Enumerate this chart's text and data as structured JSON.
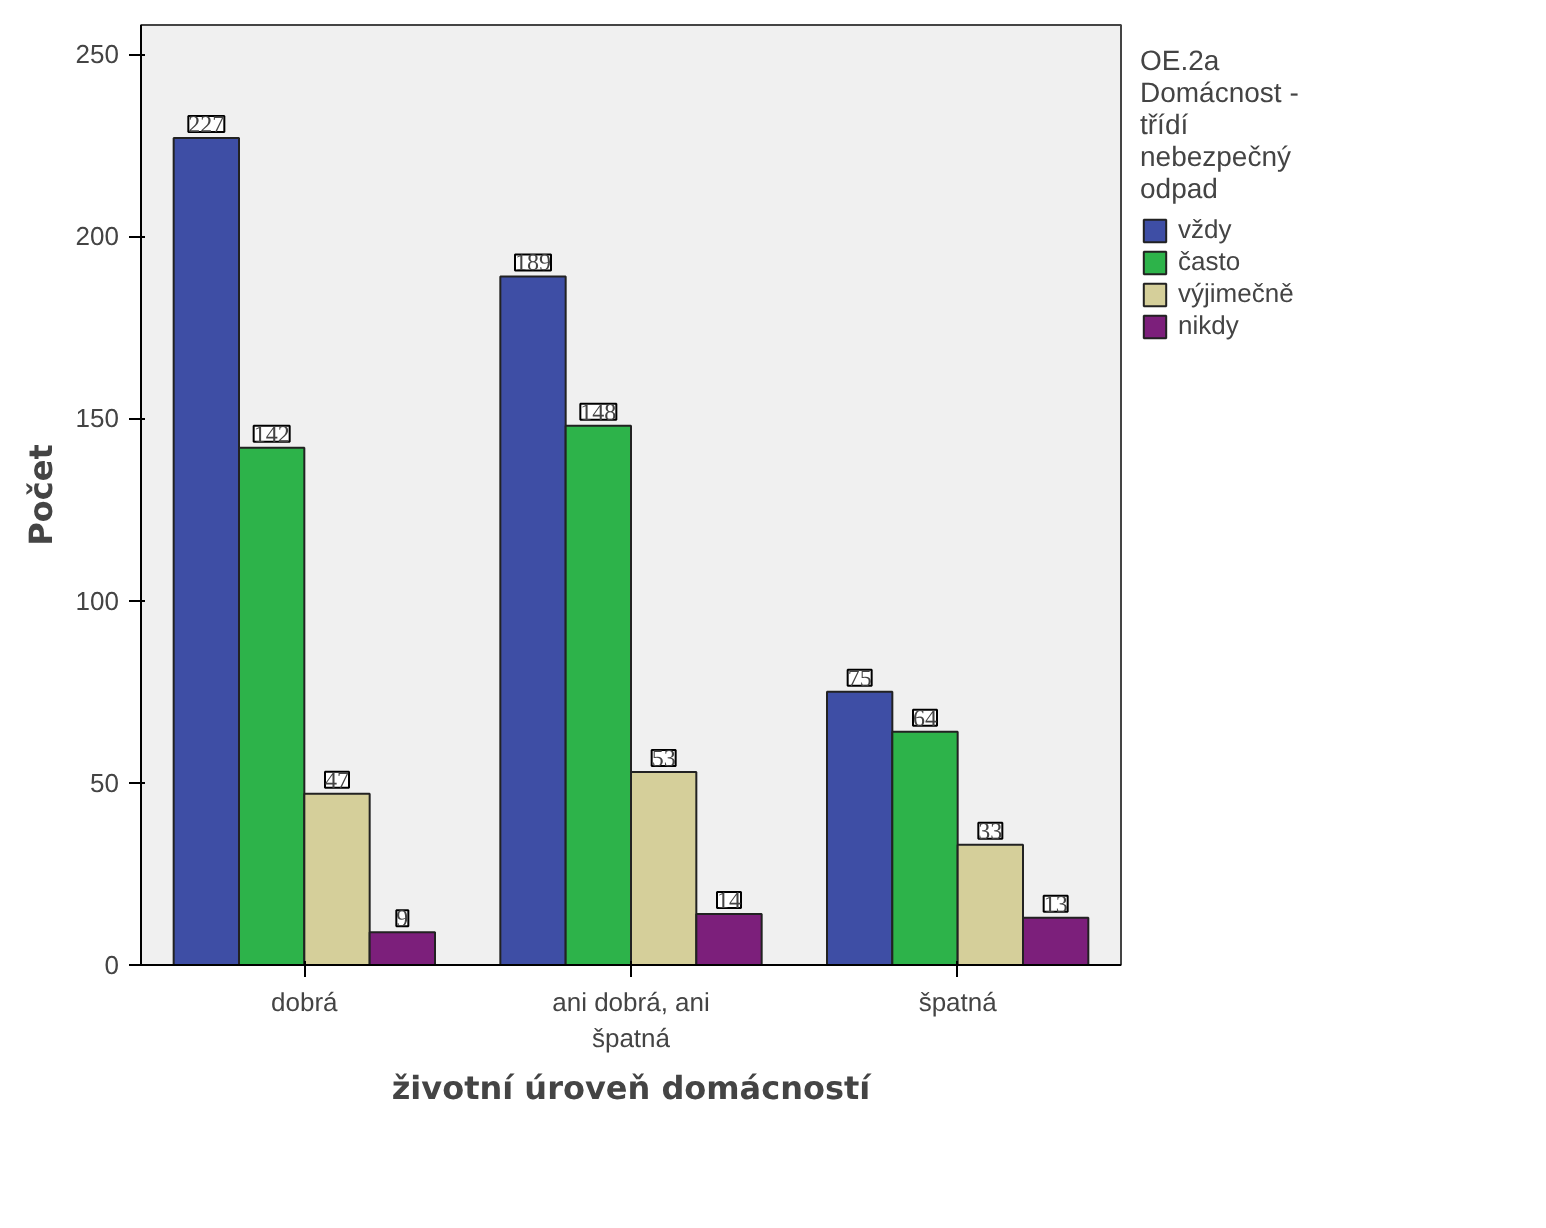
{
  "chart_data": {
    "type": "bar",
    "xlabel": "životní úroveň domácností",
    "ylabel": "Počet",
    "legend_title": "OE.2a Domácnost - třídí nebezpečný odpad",
    "categories": [
      "dobrá",
      "ani dobrá, ani špatná",
      "špatná"
    ],
    "series": [
      {
        "name": "vždy",
        "color": "#3e4ea5",
        "values": [
          227,
          189,
          75
        ]
      },
      {
        "name": "často",
        "color": "#2db34a",
        "values": [
          142,
          148,
          64
        ]
      },
      {
        "name": "výjimečně",
        "color": "#d5cf9a",
        "values": [
          47,
          53,
          33
        ]
      },
      {
        "name": "nikdy",
        "color": "#7c1f7b",
        "values": [
          9,
          14,
          13
        ]
      }
    ],
    "ylim": [
      0,
      258
    ],
    "yticks": [
      0,
      50,
      100,
      150,
      200,
      250
    ],
    "grid": false,
    "legend": "top right",
    "data_labels": true
  }
}
